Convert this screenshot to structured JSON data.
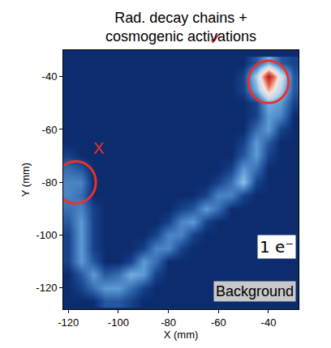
{
  "chart_data": {
    "type": "heatmap",
    "title": "Rad. decay chains + cosmogenic activations",
    "x_label": "X (mm)",
    "y_label": "Y (mm)",
    "xlim": [
      -122,
      -28
    ],
    "ylim": [
      -128,
      -30
    ],
    "xticks": [
      -120,
      -100,
      -80,
      -60,
      -40
    ],
    "yticks": [
      -120,
      -100,
      -80,
      -60,
      -40
    ],
    "x": [
      -120,
      -115,
      -110,
      -105,
      -100,
      -95,
      -90,
      -85,
      -80,
      -75,
      -70,
      -65,
      -60,
      -55,
      -50,
      -45,
      -40,
      -35,
      -30
    ],
    "y": [
      -125,
      -120,
      -115,
      -110,
      -105,
      -100,
      -95,
      -90,
      -85,
      -80,
      -75,
      -70,
      -65,
      -60,
      -55,
      -50,
      -45,
      -40,
      -35
    ],
    "zlim": [
      0,
      10
    ],
    "z": [
      [
        0,
        0,
        0,
        1,
        1,
        0.5,
        0,
        0,
        0,
        0,
        0,
        0,
        0,
        0,
        0,
        0,
        0,
        0,
        0
      ],
      [
        0,
        0.5,
        1.5,
        2.5,
        2.5,
        1.5,
        0.5,
        0,
        0,
        0,
        0,
        0,
        0,
        0,
        0,
        0,
        0,
        0,
        0
      ],
      [
        0,
        1,
        2.5,
        1,
        1.5,
        3,
        2.5,
        0.5,
        0,
        0,
        0,
        0,
        0,
        0,
        0,
        0,
        0,
        0,
        0
      ],
      [
        0.5,
        2.5,
        1,
        0,
        0,
        0.5,
        2.5,
        1.5,
        0,
        0,
        0,
        0,
        0,
        0,
        0,
        0,
        0,
        0,
        0
      ],
      [
        0.5,
        2.5,
        0.5,
        0,
        0,
        0,
        0.5,
        2,
        2,
        0.5,
        0,
        0,
        0,
        0,
        0,
        0,
        0,
        0,
        0
      ],
      [
        0.5,
        2.5,
        0.5,
        0,
        0,
        0,
        0,
        0.5,
        2,
        2,
        0.5,
        0,
        0,
        0,
        0,
        0,
        0,
        0,
        0
      ],
      [
        1,
        2.5,
        0.5,
        0,
        0,
        0,
        0,
        0,
        0.5,
        2,
        2.5,
        0.5,
        0,
        0,
        0,
        0,
        0,
        0,
        0
      ],
      [
        1.5,
        2,
        0.5,
        0,
        0,
        0,
        0,
        0,
        0,
        0.5,
        1,
        2.5,
        1.5,
        0,
        0,
        0,
        0,
        0,
        0
      ],
      [
        2,
        1.5,
        0,
        0,
        0,
        0,
        0,
        0,
        0,
        0,
        0,
        0.5,
        2,
        2,
        0.5,
        0,
        0,
        0,
        0
      ],
      [
        2,
        2,
        0,
        0,
        0,
        0,
        0,
        0,
        0,
        0,
        0,
        0,
        0.5,
        1.5,
        3.5,
        0.5,
        0,
        0,
        0
      ],
      [
        1.5,
        1,
        0,
        0,
        0,
        0,
        0,
        0,
        0,
        0,
        0,
        0,
        0,
        0.5,
        2.5,
        1.5,
        0,
        0,
        0
      ],
      [
        0.5,
        0,
        0,
        0,
        0,
        0,
        0,
        0,
        0,
        0,
        0,
        0,
        0,
        0,
        1,
        2.5,
        0.5,
        0,
        0
      ],
      [
        0,
        0,
        0,
        0,
        0,
        0,
        0,
        0,
        0,
        0,
        0,
        0,
        0,
        0,
        0.5,
        2.5,
        1,
        0,
        0
      ],
      [
        0,
        0,
        0,
        0,
        0,
        0,
        0,
        0,
        0,
        0,
        0,
        0,
        0,
        0,
        0,
        1.5,
        2.5,
        0.5,
        0
      ],
      [
        0,
        0,
        0,
        0,
        0,
        0,
        0,
        0,
        0,
        0,
        0,
        0,
        0,
        0,
        0,
        0.5,
        2.5,
        2,
        0
      ],
      [
        0,
        0,
        0,
        0,
        0,
        0,
        0,
        0,
        0,
        0,
        0,
        0,
        0,
        0,
        0,
        0.5,
        3,
        2.5,
        0.5
      ],
      [
        0,
        0,
        0,
        0,
        0,
        0,
        0,
        0,
        0,
        0,
        0,
        0,
        0,
        0,
        0.5,
        3,
        7,
        4,
        1
      ],
      [
        0,
        0,
        0,
        0,
        0,
        0,
        0,
        0,
        0,
        0,
        0,
        0,
        0,
        0,
        0.5,
        4,
        10,
        5,
        1
      ],
      [
        0,
        0,
        0,
        0,
        0,
        0,
        0,
        0,
        0,
        0,
        0,
        0,
        0,
        0,
        0,
        1,
        3,
        1,
        0.5
      ]
    ],
    "annotations": [
      {
        "text": "✓"
      },
      {
        "text": "X"
      },
      {
        "text": "1 e⁻"
      },
      {
        "text": "Background"
      }
    ],
    "grid": false
  }
}
